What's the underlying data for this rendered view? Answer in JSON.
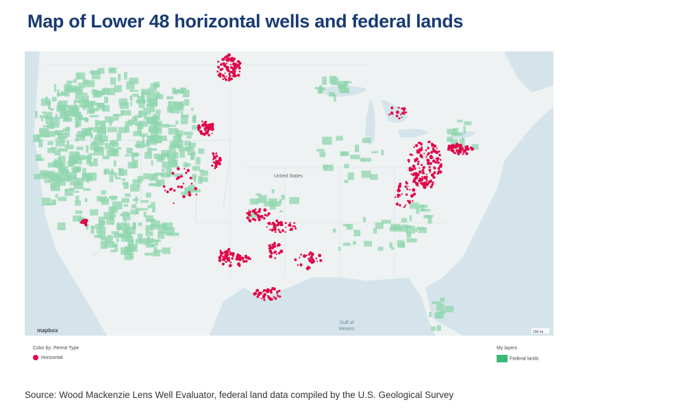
{
  "header": {
    "title": "Map of Lower 48 horizontal wells and federal lands"
  },
  "map": {
    "country_label": "United States",
    "gulf_label": "Gulf of\nMexico",
    "attribution": "mapbox",
    "scale": "100 mi"
  },
  "legend": {
    "color_by": "Color by: Permit Type",
    "permit_item": "Horizontal",
    "layers_title": "My layers",
    "layer_item": "Federal lands"
  },
  "footer": {
    "source": "Source: Wood Mackenzie Lens Well Evaluator, federal land data compiled by the U.S. Geological Survey"
  }
}
